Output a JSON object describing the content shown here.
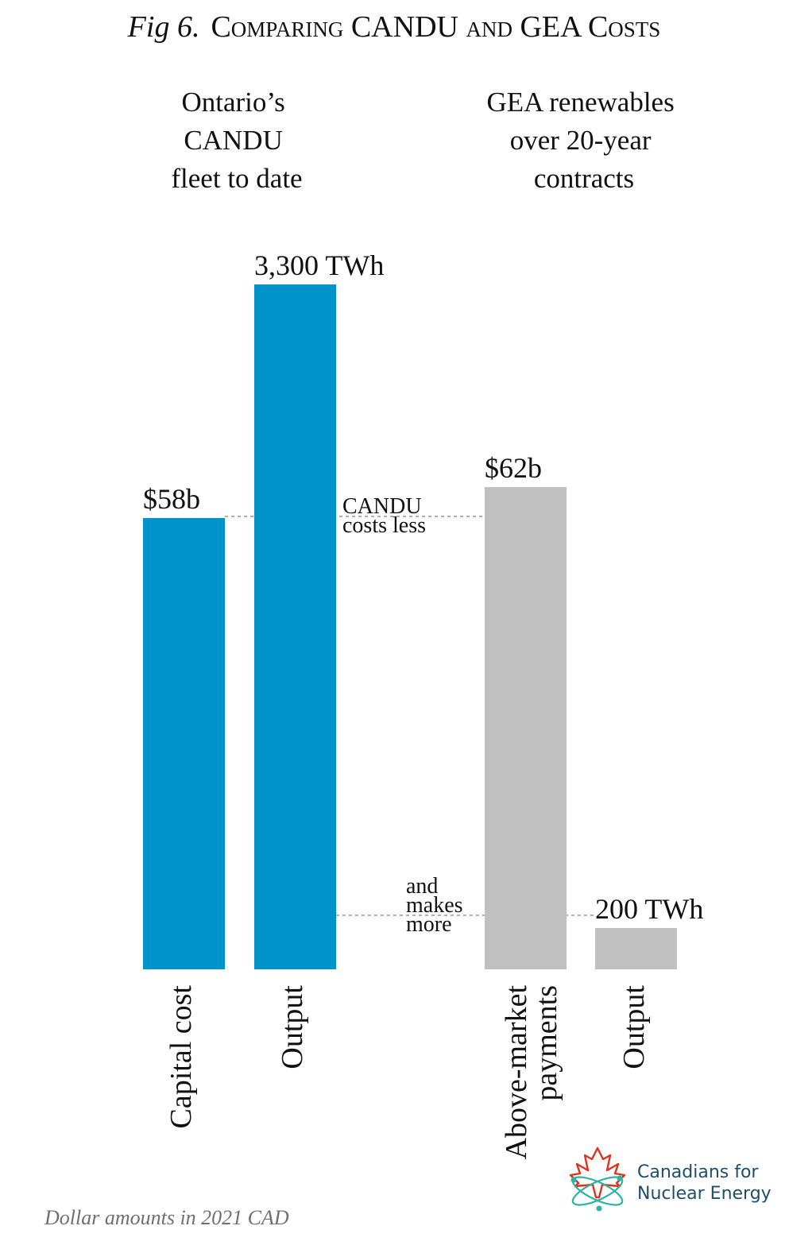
{
  "title": {
    "prefix": "Fig 6.",
    "text": "Comparing CANDU and GEA Costs"
  },
  "groups": [
    {
      "name_lines": [
        "Ontario’s",
        "CANDU",
        "fleet to date"
      ]
    },
    {
      "name_lines": [
        "GEA renewables",
        "over 20-year",
        "contracts"
      ]
    }
  ],
  "annotations": {
    "top_lines": [
      "CANDU",
      "costs less"
    ],
    "bottom_lines": [
      "and",
      "makes",
      "more"
    ]
  },
  "footnote": "Dollar amounts in 2021 CAD",
  "logo": {
    "line1": "Canadians for",
    "line2": "Nuclear Energy",
    "icon": "maple-leaf-atom-icon"
  },
  "colors": {
    "candu": "#0093c9",
    "gea": "#c0c0c0",
    "dotted": "#b0b0b0",
    "logo_red": "#e0301e",
    "logo_teal": "#2bb3a3",
    "logo_text": "#1d4e6e"
  },
  "chart_data": {
    "type": "bar",
    "note": "Two groups; each bar scaled independently by metric so that heights compare capital cost vs output.",
    "bars": [
      {
        "group": "Ontario’s CANDU fleet to date",
        "category": "Capital cost",
        "value": 58,
        "unit": "$b",
        "label": "$58b",
        "color": "#0093c9"
      },
      {
        "group": "Ontario’s CANDU fleet to date",
        "category": "Output",
        "value": 3300,
        "unit": "TWh",
        "label": "3,300 TWh",
        "color": "#0093c9"
      },
      {
        "group": "GEA renewables over 20-year contracts",
        "category": "Above-market payments",
        "category_lines": [
          "Above-market",
          "payments"
        ],
        "value": 62,
        "unit": "$b",
        "label": "$62b",
        "color": "#c0c0c0"
      },
      {
        "group": "GEA renewables over 20-year contracts",
        "category": "Output",
        "value": 200,
        "unit": "TWh",
        "label": "200 TWh",
        "color": "#c0c0c0"
      }
    ]
  }
}
